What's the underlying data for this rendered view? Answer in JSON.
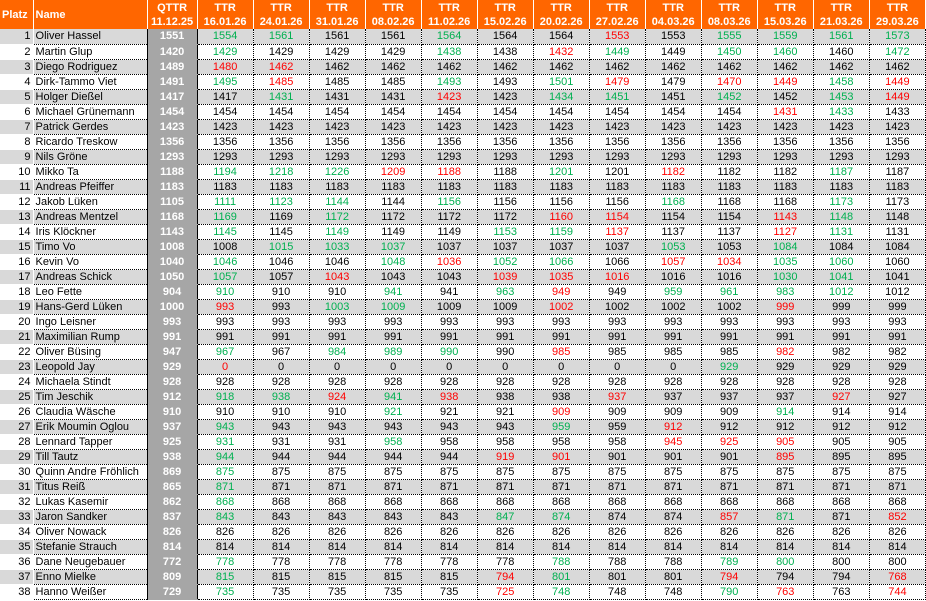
{
  "colors": {
    "header_bg": "#ff6600",
    "qttr_bg": "#a6a6a6",
    "row_alt_bg": "#d9d9d9",
    "up": "#00b050",
    "down": "#ff0000",
    "same": "#000000"
  },
  "header": {
    "platz": "Platz",
    "name": "Name",
    "columns": [
      {
        "label": "QTTR",
        "date": "11.12.25"
      },
      {
        "label": "TTR",
        "date": "16.01.26"
      },
      {
        "label": "TTR",
        "date": "24.01.26"
      },
      {
        "label": "TTR",
        "date": "31.01.26"
      },
      {
        "label": "TTR",
        "date": "08.02.26"
      },
      {
        "label": "TTR",
        "date": "11.02.26"
      },
      {
        "label": "TTR",
        "date": "15.02.26"
      },
      {
        "label": "TTR",
        "date": "20.02.26"
      },
      {
        "label": "TTR",
        "date": "27.02.26"
      },
      {
        "label": "TTR",
        "date": "04.03.26"
      },
      {
        "label": "TTR",
        "date": "08.03.26"
      },
      {
        "label": "TTR",
        "date": "15.03.26"
      },
      {
        "label": "TTR",
        "date": "21.03.26"
      },
      {
        "label": "TTR",
        "date": "29.03.26"
      }
    ]
  },
  "rows": [
    {
      "platz": "1",
      "name": "Oliver Hassel",
      "values": [
        1551,
        1554,
        1561,
        1561,
        1561,
        1564,
        1564,
        1564,
        1553,
        1553,
        1555,
        1559,
        1561,
        1573
      ]
    },
    {
      "platz": "2",
      "name": "Martin Glup",
      "values": [
        1420,
        1429,
        1429,
        1429,
        1429,
        1438,
        1438,
        1432,
        1449,
        1449,
        1450,
        1460,
        1460,
        1472
      ]
    },
    {
      "platz": "3",
      "name": "Diego Rodriguez",
      "values": [
        1489,
        1480,
        1462,
        1462,
        1462,
        1462,
        1462,
        1462,
        1462,
        1462,
        1462,
        1462,
        1462,
        1462
      ]
    },
    {
      "platz": "4",
      "name": "Dirk-Tammo Viet",
      "values": [
        1491,
        1495,
        1485,
        1485,
        1485,
        1493,
        1493,
        1501,
        1479,
        1479,
        1470,
        1449,
        1458,
        1449
      ]
    },
    {
      "platz": "5",
      "name": "Holger Dießel",
      "values": [
        1417,
        1417,
        1431,
        1431,
        1431,
        1423,
        1423,
        1434,
        1451,
        1451,
        1452,
        1452,
        1453,
        1449
      ]
    },
    {
      "platz": "6",
      "name": "Michael Grünemann",
      "values": [
        1454,
        1454,
        1454,
        1454,
        1454,
        1454,
        1454,
        1454,
        1454,
        1454,
        1454,
        1431,
        1433,
        1433
      ]
    },
    {
      "platz": "7",
      "name": "Patrick Gerdes",
      "values": [
        1423,
        1423,
        1423,
        1423,
        1423,
        1423,
        1423,
        1423,
        1423,
        1423,
        1423,
        1423,
        1423,
        1423
      ]
    },
    {
      "platz": "8",
      "name": "Ricardo Treskow",
      "values": [
        1356,
        1356,
        1356,
        1356,
        1356,
        1356,
        1356,
        1356,
        1356,
        1356,
        1356,
        1356,
        1356,
        1356
      ]
    },
    {
      "platz": "9",
      "name": "Nils Gröne",
      "values": [
        1293,
        1293,
        1293,
        1293,
        1293,
        1293,
        1293,
        1293,
        1293,
        1293,
        1293,
        1293,
        1293,
        1293
      ]
    },
    {
      "platz": "10",
      "name": "Mikko Ta",
      "values": [
        1188,
        1194,
        1218,
        1226,
        1209,
        1188,
        1188,
        1201,
        1201,
        1182,
        1182,
        1182,
        1187,
        1187
      ]
    },
    {
      "platz": "11",
      "name": "Andreas Pfeiffer",
      "values": [
        1183,
        1183,
        1183,
        1183,
        1183,
        1183,
        1183,
        1183,
        1183,
        1183,
        1183,
        1183,
        1183,
        1183
      ]
    },
    {
      "platz": "12",
      "name": "Jakob Lüken",
      "values": [
        1105,
        1111,
        1123,
        1144,
        1144,
        1156,
        1156,
        1156,
        1156,
        1168,
        1168,
        1168,
        1173,
        1173
      ]
    },
    {
      "platz": "13",
      "name": "Andreas Mentzel",
      "values": [
        1168,
        1169,
        1169,
        1172,
        1172,
        1172,
        1172,
        1160,
        1154,
        1154,
        1154,
        1143,
        1148,
        1148
      ]
    },
    {
      "platz": "14",
      "name": "Iris Klöckner",
      "values": [
        1143,
        1145,
        1145,
        1149,
        1149,
        1149,
        1153,
        1159,
        1137,
        1137,
        1137,
        1127,
        1131,
        1131
      ]
    },
    {
      "platz": "15",
      "name": "Timo Vo",
      "values": [
        1008,
        1008,
        1015,
        1033,
        1037,
        1037,
        1037,
        1037,
        1037,
        1053,
        1053,
        1084,
        1084,
        1084
      ]
    },
    {
      "platz": "16",
      "name": "Kevin Vo",
      "values": [
        1040,
        1046,
        1046,
        1046,
        1048,
        1036,
        1052,
        1066,
        1066,
        1057,
        1034,
        1035,
        1060,
        1060
      ]
    },
    {
      "platz": "17",
      "name": "Andreas Schick",
      "values": [
        1050,
        1057,
        1057,
        1043,
        1043,
        1043,
        1039,
        1035,
        1016,
        1016,
        1016,
        1030,
        1041,
        1041
      ]
    },
    {
      "platz": "18",
      "name": "Leo Fette",
      "values": [
        904,
        910,
        910,
        910,
        941,
        941,
        963,
        949,
        949,
        959,
        961,
        983,
        1012,
        1012
      ]
    },
    {
      "platz": "19",
      "name": "Hans-Gerd Lüken",
      "values": [
        1000,
        993,
        993,
        1003,
        1009,
        1009,
        1009,
        1002,
        1002,
        1002,
        1002,
        999,
        999,
        999
      ]
    },
    {
      "platz": "20",
      "name": "Ingo Leisner",
      "values": [
        993,
        993,
        993,
        993,
        993,
        993,
        993,
        993,
        993,
        993,
        993,
        993,
        993,
        993
      ]
    },
    {
      "platz": "21",
      "name": "Maximilian Rump",
      "values": [
        991,
        991,
        991,
        991,
        991,
        991,
        991,
        991,
        991,
        991,
        991,
        991,
        991,
        991
      ]
    },
    {
      "platz": "22",
      "name": "Oliver Büsing",
      "values": [
        947,
        967,
        967,
        984,
        989,
        990,
        990,
        985,
        985,
        985,
        985,
        982,
        982,
        982
      ]
    },
    {
      "platz": "23",
      "name": "Leopold Jay",
      "values": [
        929,
        0,
        0,
        0,
        0,
        0,
        0,
        0,
        0,
        0,
        929,
        929,
        929,
        929
      ]
    },
    {
      "platz": "24",
      "name": "Michaela Stindt",
      "values": [
        928,
        928,
        928,
        928,
        928,
        928,
        928,
        928,
        928,
        928,
        928,
        928,
        928,
        928
      ]
    },
    {
      "platz": "25",
      "name": "Tim Jeschik",
      "values": [
        912,
        918,
        938,
        924,
        941,
        938,
        938,
        938,
        937,
        937,
        937,
        937,
        927,
        927
      ]
    },
    {
      "platz": "26",
      "name": "Claudia Wäsche",
      "values": [
        910,
        910,
        910,
        910,
        921,
        921,
        921,
        909,
        909,
        909,
        909,
        914,
        914,
        914
      ]
    },
    {
      "platz": "27",
      "name": "Erik Moumin Oglou",
      "values": [
        937,
        943,
        943,
        943,
        943,
        943,
        943,
        959,
        959,
        912,
        912,
        912,
        912,
        912
      ]
    },
    {
      "platz": "28",
      "name": "Lennard Tapper",
      "values": [
        925,
        931,
        931,
        931,
        958,
        958,
        958,
        958,
        958,
        945,
        925,
        905,
        905,
        905
      ]
    },
    {
      "platz": "29",
      "name": "Till Tautz",
      "values": [
        938,
        944,
        944,
        944,
        944,
        944,
        919,
        901,
        901,
        901,
        901,
        895,
        895,
        895
      ]
    },
    {
      "platz": "30",
      "name": "Quinn Andre Fröhlich",
      "values": [
        869,
        875,
        875,
        875,
        875,
        875,
        875,
        875,
        875,
        875,
        875,
        875,
        875,
        875
      ]
    },
    {
      "platz": "31",
      "name": "Titus Reiß",
      "values": [
        865,
        871,
        871,
        871,
        871,
        871,
        871,
        871,
        871,
        871,
        871,
        871,
        871,
        871
      ]
    },
    {
      "platz": "32",
      "name": "Lukas Kasemir",
      "values": [
        862,
        868,
        868,
        868,
        868,
        868,
        868,
        868,
        868,
        868,
        868,
        868,
        868,
        868
      ]
    },
    {
      "platz": "33",
      "name": "Jaron Sandker",
      "values": [
        837,
        843,
        843,
        843,
        843,
        843,
        847,
        874,
        874,
        874,
        857,
        871,
        871,
        852
      ]
    },
    {
      "platz": "34",
      "name": "Oliver Nowack",
      "values": [
        826,
        826,
        826,
        826,
        826,
        826,
        826,
        826,
        826,
        826,
        826,
        826,
        826,
        826
      ]
    },
    {
      "platz": "35",
      "name": "Stefanie Strauch",
      "values": [
        814,
        814,
        814,
        814,
        814,
        814,
        814,
        814,
        814,
        814,
        814,
        814,
        814,
        814
      ]
    },
    {
      "platz": "36",
      "name": "Dane Neugebauer",
      "values": [
        772,
        778,
        778,
        778,
        778,
        778,
        778,
        788,
        788,
        788,
        789,
        800,
        800,
        800
      ]
    },
    {
      "platz": "37",
      "name": "Enno Mielke",
      "values": [
        809,
        815,
        815,
        815,
        815,
        815,
        794,
        801,
        801,
        801,
        794,
        794,
        794,
        768
      ]
    },
    {
      "platz": "38",
      "name": "Hanno Weißer",
      "values": [
        729,
        735,
        735,
        735,
        735,
        735,
        725,
        748,
        748,
        748,
        790,
        763,
        763,
        744
      ]
    }
  ]
}
